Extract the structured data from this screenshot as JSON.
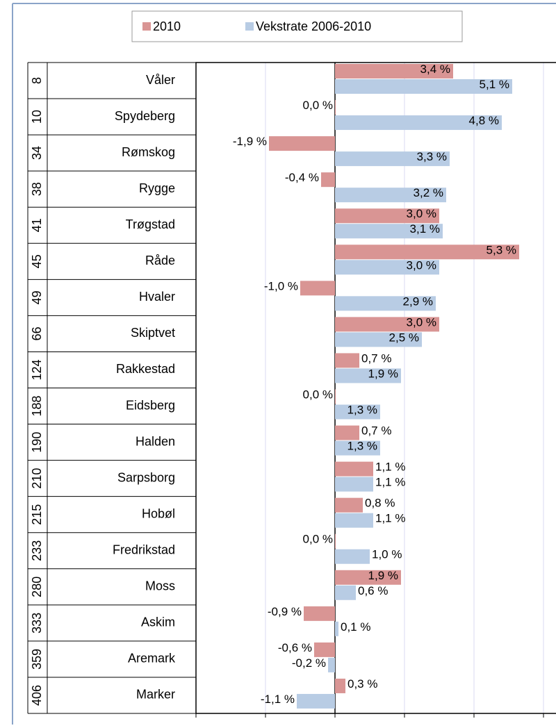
{
  "chart_data": {
    "type": "hbar",
    "ranks": [
      "8",
      "10",
      "34",
      "38",
      "41",
      "45",
      "49",
      "66",
      "124",
      "188",
      "190",
      "210",
      "215",
      "233",
      "280",
      "333",
      "359",
      "406"
    ],
    "categories": [
      "Våler",
      "Spydeberg",
      "Rømskog",
      "Rygge",
      "Trøgstad",
      "Råde",
      "Hvaler",
      "Skiptvet",
      "Rakkestad",
      "Eidsberg",
      "Halden",
      "Sarpsborg",
      "Hobøl",
      "Fredrikstad",
      "Moss",
      "Askim",
      "Aremark",
      "Marker"
    ],
    "series": [
      {
        "name": "2010",
        "color": "#d99594",
        "values": [
          3.4,
          0.0,
          -1.9,
          -0.4,
          3.0,
          5.3,
          -1.0,
          3.0,
          0.7,
          0.0,
          0.7,
          1.1,
          0.8,
          0.0,
          1.9,
          -0.9,
          -0.6,
          0.3
        ],
        "value_labels": [
          "3,4 %",
          "0,0 %",
          "-1,9 %",
          "-0,4 %",
          "3,0 %",
          "5,3 %",
          "-1,0 %",
          "3,0 %",
          "0,7 %",
          "0,0 %",
          "0,7 %",
          "1,1 %",
          "0,8 %",
          "0,0 %",
          "1,9 %",
          "-0,9 %",
          "-0,6 %",
          "0,3 %"
        ]
      },
      {
        "name": "Vekstrate 2006-2010",
        "color": "#b8cce4",
        "values": [
          5.1,
          4.8,
          3.3,
          3.2,
          3.1,
          3.0,
          2.9,
          2.5,
          1.9,
          1.3,
          1.3,
          1.1,
          1.1,
          1.0,
          0.6,
          0.1,
          -0.2,
          -1.1
        ],
        "value_labels": [
          "5,1 %",
          "4,8 %",
          "3,3 %",
          "3,2 %",
          "3,1 %",
          "3,0 %",
          "2,9 %",
          "2,5 %",
          "1,9 %",
          "1,3 %",
          "1,3 %",
          "1,1 %",
          "1,1 %",
          "1,0 %",
          "0,6 %",
          "0,1 %",
          "-0,2 %",
          "-1,1 %"
        ]
      }
    ],
    "xlim": [
      -4,
      6
    ],
    "xticks": [
      -4,
      -2,
      0,
      2,
      4,
      6
    ],
    "grid": true
  }
}
